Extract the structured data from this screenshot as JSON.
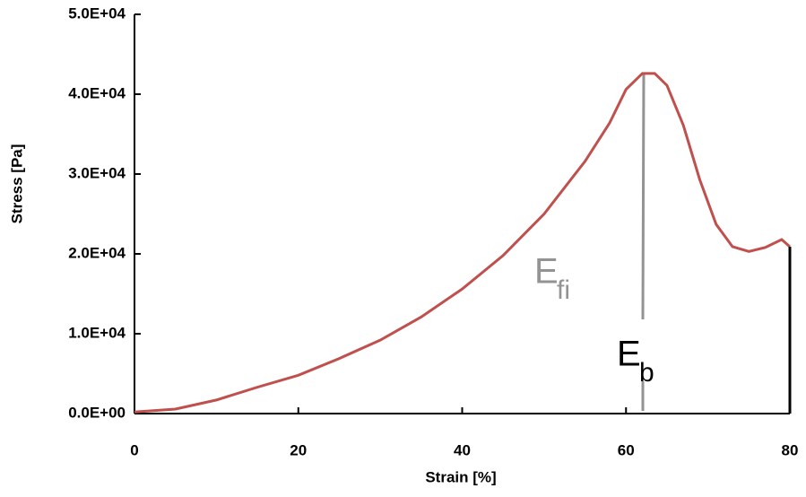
{
  "chart_data": {
    "type": "line",
    "xlabel": "Strain [%]",
    "ylabel": "Stress [Pa]",
    "series": [
      {
        "color": "#c0504d",
        "x": [
          0,
          5,
          10,
          15,
          20,
          25,
          30,
          35,
          40,
          45,
          50,
          55,
          58,
          60,
          62,
          63.5,
          65,
          67,
          69,
          71,
          73,
          75,
          77,
          79,
          80
        ],
        "values": [
          200,
          560,
          1700,
          3300,
          4800,
          6900,
          9200,
          12100,
          15600,
          19800,
          25000,
          31600,
          36400,
          40600,
          42600,
          42600,
          41100,
          36100,
          29300,
          23700,
          20900,
          20300,
          20800,
          21800,
          20900
        ]
      },
      {
        "color": "#000000",
        "x": [
          80,
          80
        ],
        "values": [
          20900,
          0
        ]
      }
    ],
    "xlim": [
      0,
      80
    ],
    "xticks": [
      0,
      20,
      40,
      60,
      80
    ],
    "ylim": [
      0,
      50000
    ],
    "yticks": [
      {
        "value": 0,
        "label": "0.0E+00"
      },
      {
        "value": 10000,
        "label": "1.0E+04"
      },
      {
        "value": 20000,
        "label": "2.0E+04"
      },
      {
        "value": 30000,
        "label": "3.0E+04"
      },
      {
        "value": 40000,
        "label": "4.0E+04"
      },
      {
        "value": 50000,
        "label": "5.0E+04"
      }
    ],
    "annotations": [
      {
        "text": "E",
        "sub": "fi",
        "color": "#939393"
      },
      {
        "text": "E",
        "sub": "b",
        "color": "#000000"
      }
    ]
  }
}
